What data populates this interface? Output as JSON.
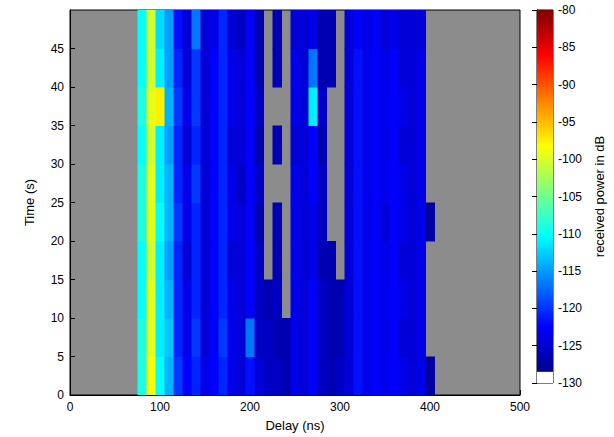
{
  "chart_data": {
    "type": "heatmap",
    "x_label": "Delay (ns)",
    "y_label": "Time (s)",
    "x": [
      80,
      90,
      100,
      110,
      120,
      130,
      140,
      150,
      160,
      170,
      180,
      190,
      200,
      210,
      220,
      230,
      240,
      250,
      260,
      270,
      280,
      290,
      300,
      310,
      320,
      330,
      340,
      350,
      360,
      370,
      380,
      390,
      400
    ],
    "y": [
      2.5,
      7.5,
      12.5,
      17.5,
      22.5,
      27.5,
      32.5,
      37.5,
      42.5,
      47.5
    ],
    "values": [
      [
        -110,
        -99,
        -111,
        -115,
        -121,
        -124,
        -122,
        -125,
        -124,
        -122,
        -125,
        -126,
        -123,
        -126,
        -127,
        -127,
        -128,
        -125,
        -126,
        -124,
        -127,
        -128,
        -127,
        -126,
        -123,
        -125,
        -124,
        -125,
        -124,
        -125,
        -126,
        -125,
        -129
      ],
      [
        -110,
        -100,
        -112,
        -114,
        -122,
        -125,
        -121,
        -126,
        -124,
        -121,
        -125,
        -126,
        -118,
        -127,
        -127,
        -128,
        -128,
        -125,
        -126,
        -124,
        -127,
        -128,
        -128,
        -126,
        -123,
        -125,
        -124,
        -125,
        -124,
        -126,
        -126,
        -125,
        null
      ],
      [
        -111,
        -100,
        -112,
        -115,
        -122,
        -125,
        -122,
        -126,
        -124,
        -122,
        -125,
        -126,
        -124,
        -127,
        -128,
        -127,
        null,
        -125,
        -126,
        -124,
        -127,
        -128,
        -128,
        -126,
        -123,
        -125,
        -124,
        -125,
        -124,
        -125,
        -126,
        -125,
        null
      ],
      [
        -111,
        -101,
        -112,
        -116,
        -122,
        -126,
        -122,
        -126,
        -124,
        -122,
        -126,
        -126,
        -124,
        -127,
        null,
        -128,
        null,
        -125,
        -126,
        -125,
        -128,
        -128,
        null,
        -126,
        -123,
        -125,
        -124,
        -125,
        -124,
        -126,
        -126,
        -125,
        null
      ],
      [
        -110,
        -100,
        -111,
        -115,
        -121,
        -125,
        -122,
        -126,
        -124,
        -122,
        -125,
        -126,
        -124,
        -128,
        null,
        -128,
        null,
        -125,
        -126,
        -125,
        -127,
        null,
        null,
        -126,
        -123,
        -125,
        -124,
        -126,
        -124,
        -125,
        -126,
        -125,
        -129
      ],
      [
        -110,
        -100,
        -112,
        -115,
        -122,
        -125,
        -121,
        -126,
        -124,
        -122,
        -125,
        -127,
        -124,
        -127,
        null,
        null,
        null,
        -125,
        -126,
        -124,
        -127,
        null,
        null,
        -126,
        -123,
        -125,
        -124,
        -125,
        -124,
        -125,
        -126,
        -125,
        null
      ],
      [
        -111,
        -101,
        -112,
        -116,
        -122,
        -126,
        -122,
        -126,
        -124,
        -122,
        -126,
        -126,
        -124,
        -128,
        null,
        -128,
        null,
        -126,
        -126,
        -124,
        -128,
        null,
        null,
        -126,
        -123,
        -125,
        -124,
        -125,
        -124,
        -126,
        -126,
        -125,
        null
      ],
      [
        -110,
        -100,
        -98,
        -115,
        -121,
        -125,
        -121,
        -126,
        -124,
        -122,
        -125,
        -126,
        -124,
        -127,
        null,
        null,
        null,
        -125,
        -126,
        -112,
        -127,
        null,
        null,
        -126,
        -123,
        -125,
        -124,
        -125,
        -124,
        -125,
        -126,
        -125,
        null
      ],
      [
        -111,
        -101,
        -112,
        -116,
        -122,
        -126,
        -121,
        -126,
        -124,
        -122,
        -125,
        -126,
        -124,
        -128,
        null,
        -128,
        null,
        -125,
        -126,
        -118,
        -128,
        -128,
        null,
        -126,
        -123,
        -125,
        -124,
        -125,
        -124,
        -126,
        -126,
        -125,
        null
      ],
      [
        -111,
        -101,
        -113,
        -116,
        -123,
        -126,
        -118,
        -126,
        -125,
        -122,
        -126,
        -127,
        -124,
        -128,
        null,
        -128,
        null,
        -126,
        -126,
        -125,
        -128,
        -128,
        null,
        -126,
        -124,
        -125,
        -124,
        -126,
        -125,
        -126,
        -126,
        -126,
        null
      ]
    ],
    "xlim": [
      0,
      500
    ],
    "xticks": [
      0,
      100,
      200,
      300,
      400,
      500
    ],
    "ylim": [
      0,
      50
    ],
    "yticks": [
      0,
      5,
      10,
      15,
      20,
      25,
      30,
      35,
      40,
      45
    ],
    "colorbar": {
      "label": "received power in dB",
      "lim": [
        -130,
        -80
      ],
      "ticks": [
        -130,
        -125,
        -120,
        -115,
        -110,
        -105,
        -100,
        -95,
        -90,
        -85,
        -80
      ]
    },
    "grid": false
  }
}
